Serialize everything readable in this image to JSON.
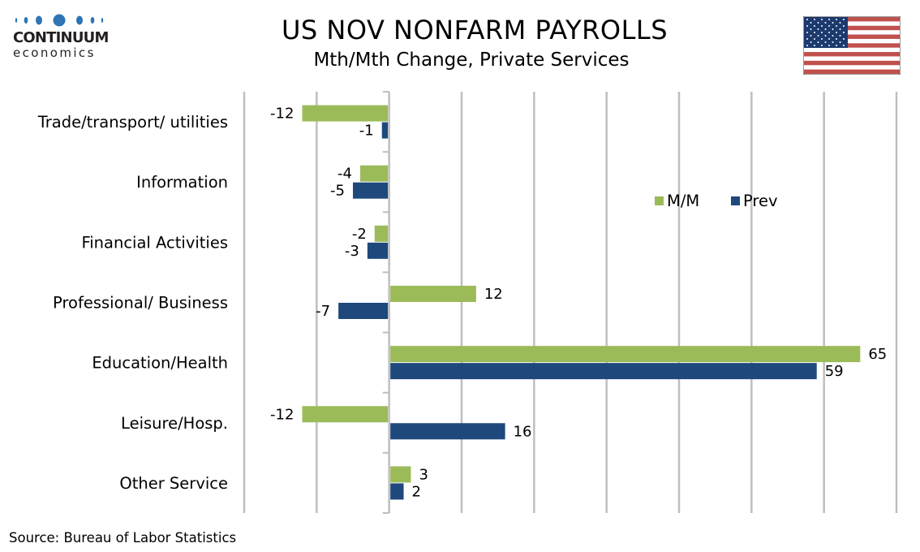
{
  "logo": {
    "wordmark": "CONTINUUM",
    "sub": "economics",
    "color": "#2e75b6"
  },
  "title": "US NOV NONFARM PAYROLLS",
  "subtitle": "Mth/Mth Change, Private Services",
  "flag_icon": "us-flag-icon",
  "source": "Source: Bureau of Labor Statistics",
  "chart_data": {
    "type": "bar",
    "orientation": "horizontal",
    "title": "US NOV NONFARM PAYROLLS",
    "subtitle": "Mth/Mth Change, Private Services",
    "xlabel": "",
    "ylabel": "",
    "categories": [
      "Trade/transport/ utilities",
      "Information",
      "Financial Activities",
      "Professional/ Business",
      "Education/Health",
      "Leisure/Hosp.",
      "Other Service"
    ],
    "series": [
      {
        "name": "M/M",
        "color": "#9bbb59",
        "values": [
          -12,
          -4,
          -2,
          12,
          65,
          -12,
          3
        ]
      },
      {
        "name": "Prev",
        "color": "#1f497d",
        "values": [
          -1,
          -5,
          -3,
          -7,
          59,
          16,
          2
        ]
      }
    ],
    "xlim": [
      -20,
      70
    ],
    "x_gridline_step": 10,
    "x_tick_labels_shown": false,
    "grid": true,
    "data_labels": true,
    "legend": {
      "position": "upper-right-inside",
      "entries": [
        "M/M",
        "Prev"
      ]
    }
  }
}
